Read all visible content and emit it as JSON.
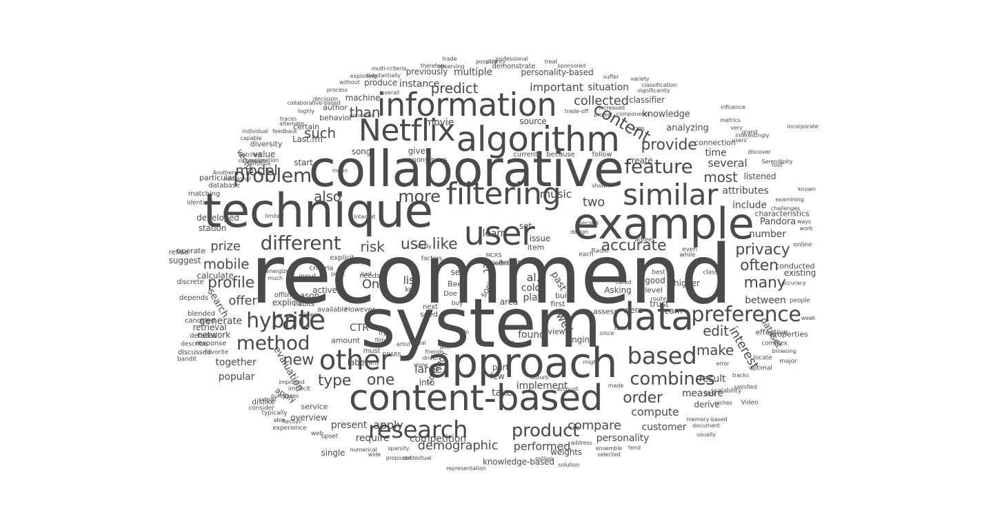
{
  "words": [
    "recommend",
    "system",
    "collaborative",
    "technique",
    "example",
    "approach",
    "content-based",
    "algorithm",
    "information",
    "Netflix",
    "filtering",
    "user",
    "data",
    "similar",
    "rate",
    "other",
    "research",
    "based",
    "product",
    "method",
    "combines",
    "preference",
    "feature",
    "problem",
    "hybrid",
    "different",
    "provide",
    "content",
    "privacy",
    "profile",
    "model",
    "more",
    "demographic",
    "collected",
    "predict",
    "important",
    "accurate",
    "often",
    "order",
    "like",
    "edit",
    "also",
    "new",
    "type",
    "mobile",
    "many",
    "most",
    "use",
    "prize",
    "risk",
    "one",
    "than",
    "such",
    "compare",
    "make",
    "apply",
    "interest",
    "large",
    "compute",
    "performed",
    "present",
    "personality",
    "evaluation",
    "One",
    "list",
    "customer",
    "require",
    "between",
    "instance",
    "situation",
    "personality-based",
    "multiple",
    "previously",
    "produce",
    "demonstrate",
    "machine",
    "author",
    "behavior",
    "decision",
    "analyzing",
    "knowledge",
    "classifier",
    "source",
    "movie",
    "Last.fm",
    "certain",
    "song",
    "value",
    "start",
    "given",
    "anonymous",
    "current",
    "because",
    "follow",
    "connection",
    "time",
    "several",
    "include",
    "attributes",
    "listened",
    "Pandora",
    "characteristics",
    "number",
    "conducted",
    "existing",
    "dataset",
    "offer",
    "generate",
    "developed",
    "station",
    "suggest",
    "calculate",
    "search",
    "network",
    "together",
    "popular",
    "label",
    "CTR",
    "learn",
    "music",
    "two",
    "create",
    "set",
    "issue",
    "item",
    "al.",
    "et",
    "cold",
    "play",
    "past",
    "built",
    "first",
    "view",
    "well",
    "found",
    "engine",
    "implement",
    "take",
    "few",
    "part",
    "into",
    "competition",
    "knowledge-based",
    "weights",
    "single",
    "overview",
    "derive",
    "measure",
    "result",
    "team",
    "trust",
    "level",
    "route",
    "higher",
    "effective",
    "properties",
    "Asking",
    "assess",
    "were",
    "good",
    "best",
    "active",
    "needs",
    "amount",
    "must",
    "see",
    "Beel",
    "Doe",
    "buy",
    "key",
    "explicit",
    "offline",
    "available",
    "However",
    "seed",
    "next",
    "reason",
    "retrieval",
    "response",
    "favorite",
    "diversity",
    "vector",
    "particular",
    "database",
    "matching",
    "identical",
    "operate",
    "refine",
    "discrete",
    "depends",
    "blended",
    "canceled",
    "detailed",
    "describe",
    "discussed",
    "bandit",
    "criteria",
    "input",
    "explicit",
    "habits",
    "lower",
    "area",
    "social",
    "common",
    "service",
    "dislike",
    "apply",
    "implicit",
    "consider",
    "typically",
    "experience",
    "web",
    "upset",
    "numerical",
    "wide",
    "proposed",
    "contextual",
    "representation",
    "million",
    "solution",
    "ensemble",
    "selected",
    "tend",
    "address",
    "sparsity",
    "Video",
    "document",
    "usually",
    "memory-based",
    "niches",
    "scalability",
    "satisfied",
    "tracks",
    "optimal",
    "locate",
    "complex",
    "browsing",
    "major",
    "people",
    "weak",
    "accuracy",
    "classic",
    "online",
    "even",
    "while",
    "agree",
    "form",
    "each",
    "Radio",
    "ways",
    "work",
    "challenges",
    "examining",
    "known",
    "incorporate",
    "significantly",
    "classification",
    "variety",
    "suffer",
    "sponsored",
    "treat",
    "professional",
    "priority",
    "trade",
    "therefore",
    "possible",
    "observing",
    "multi-criteria",
    "substantially",
    "exploiting",
    "without",
    "process",
    "collaborative-based",
    "highly",
    "traces",
    "alternate",
    "feedback",
    "watched",
    "individual",
    "capable",
    "risk-aware",
    "exploration",
    "sensitive",
    "Another",
    "additional",
    "limited",
    "internet",
    "mean",
    "very",
    "grand",
    "metrics",
    "influence",
    "users'",
    "Serendipity",
    "discover",
    "interestingly",
    "trade-off",
    "increased",
    "concerns",
    "overall",
    "second",
    "shown",
    "components",
    "project",
    "GPS",
    "called",
    "since",
    "made",
    "might",
    "study",
    "factors",
    "Recent",
    "MCRS",
    "i.e",
    "do",
    "aim",
    "real",
    "film",
    "try",
    "artist",
    "DRARS",
    "why",
    "point",
    "energized",
    "much",
    "history",
    "had",
    "able",
    "RecSys",
    "improved",
    "subset",
    "purchases",
    "show",
    "friends",
    "drivers",
    "disturb",
    "account",
    "little",
    "error",
    "root",
    "design",
    "squared",
    "tied"
  ],
  "color": "#4a4a4a",
  "background": "#ffffff"
}
